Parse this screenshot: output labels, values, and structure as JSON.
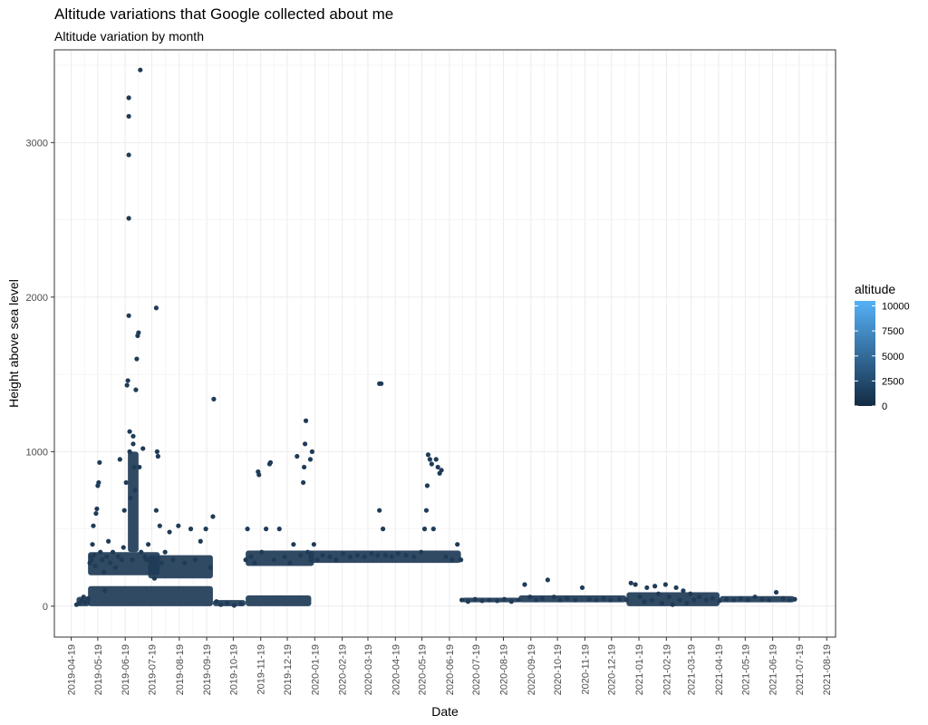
{
  "chart_data": {
    "type": "scatter",
    "title": "Altitude variations that Google collected about me",
    "subtitle": "Altitude variation by month",
    "xlabel": "Date",
    "ylabel": "Height above sea level",
    "xlim": [
      "2019-03-31",
      "2021-08-29"
    ],
    "ylim": [
      -200,
      3600
    ],
    "x_ticks": [
      "2019-04-19",
      "2019-05-19",
      "2019-06-19",
      "2019-07-19",
      "2019-08-19",
      "2019-09-19",
      "2019-10-19",
      "2019-11-19",
      "2019-12-19",
      "2020-01-19",
      "2020-02-19",
      "2020-03-19",
      "2020-04-19",
      "2020-05-19",
      "2020-06-19",
      "2020-07-19",
      "2020-08-19",
      "2020-09-19",
      "2020-10-19",
      "2020-11-19",
      "2020-12-19",
      "2021-01-19",
      "2021-02-19",
      "2021-03-19",
      "2021-04-19",
      "2021-05-19",
      "2021-06-19",
      "2021-07-19",
      "2021-08-19"
    ],
    "y_ticks": [
      0,
      1000,
      2000,
      3000
    ],
    "grid": true,
    "point_color": "#1f3b57",
    "legend": {
      "title": "altitude",
      "placement": "right",
      "type": "colorbar",
      "ticks": [
        0,
        2500,
        5000,
        7500,
        10000
      ],
      "range": [
        0,
        10500
      ],
      "color_low": "#132b43",
      "color_high": "#56b1f7"
    },
    "points": [
      [
        "2019-04-25",
        10
      ],
      [
        "2019-04-28",
        20
      ],
      [
        "2019-05-01",
        35
      ],
      [
        "2019-05-03",
        60
      ],
      [
        "2019-05-05",
        25
      ],
      [
        "2019-05-08",
        50
      ],
      [
        "2019-05-10",
        280
      ],
      [
        "2019-05-11",
        320
      ],
      [
        "2019-05-12",
        300
      ],
      [
        "2019-05-13",
        400
      ],
      [
        "2019-05-14",
        520
      ],
      [
        "2019-05-15",
        330
      ],
      [
        "2019-05-16",
        260
      ],
      [
        "2019-05-17",
        600
      ],
      [
        "2019-05-18",
        630
      ],
      [
        "2019-05-19",
        780
      ],
      [
        "2019-05-20",
        800
      ],
      [
        "2019-05-21",
        930
      ],
      [
        "2019-05-22",
        350
      ],
      [
        "2019-05-24",
        300
      ],
      [
        "2019-05-26",
        220
      ],
      [
        "2019-05-27",
        100
      ],
      [
        "2019-05-29",
        320
      ],
      [
        "2019-05-31",
        420
      ],
      [
        "2019-06-02",
        280
      ],
      [
        "2019-06-05",
        350
      ],
      [
        "2019-06-08",
        250
      ],
      [
        "2019-06-11",
        320
      ],
      [
        "2019-06-13",
        950
      ],
      [
        "2019-06-15",
        300
      ],
      [
        "2019-06-17",
        380
      ],
      [
        "2019-06-18",
        620
      ],
      [
        "2019-06-20",
        800
      ],
      [
        "2019-06-21",
        1430
      ],
      [
        "2019-06-22",
        1460
      ],
      [
        "2019-06-23",
        1880
      ],
      [
        "2019-06-23",
        2510
      ],
      [
        "2019-06-23",
        2920
      ],
      [
        "2019-06-23",
        3170
      ],
      [
        "2019-06-23",
        3290
      ],
      [
        "2019-06-24",
        1000
      ],
      [
        "2019-06-24",
        1130
      ],
      [
        "2019-06-25",
        700
      ],
      [
        "2019-06-27",
        300
      ],
      [
        "2019-06-28",
        1050
      ],
      [
        "2019-06-28",
        1100
      ],
      [
        "2019-06-29",
        900
      ],
      [
        "2019-06-30",
        750
      ],
      [
        "2019-07-01",
        1400
      ],
      [
        "2019-07-02",
        1600
      ],
      [
        "2019-07-03",
        1750
      ],
      [
        "2019-07-04",
        1770
      ],
      [
        "2019-07-05",
        900
      ],
      [
        "2019-07-06",
        3470
      ],
      [
        "2019-07-07",
        350
      ],
      [
        "2019-07-09",
        1020
      ],
      [
        "2019-07-11",
        320
      ],
      [
        "2019-07-13",
        300
      ],
      [
        "2019-07-15",
        400
      ],
      [
        "2019-07-17",
        250
      ],
      [
        "2019-07-20",
        300
      ],
      [
        "2019-07-22",
        180
      ],
      [
        "2019-07-24",
        620
      ],
      [
        "2019-07-24",
        1930
      ],
      [
        "2019-07-25",
        1000
      ],
      [
        "2019-07-26",
        970
      ],
      [
        "2019-07-28",
        520
      ],
      [
        "2019-07-30",
        280
      ],
      [
        "2019-08-03",
        350
      ],
      [
        "2019-08-08",
        480
      ],
      [
        "2019-08-12",
        300
      ],
      [
        "2019-08-18",
        520
      ],
      [
        "2019-08-25",
        280
      ],
      [
        "2019-09-01",
        500
      ],
      [
        "2019-09-06",
        300
      ],
      [
        "2019-09-12",
        420
      ],
      [
        "2019-09-18",
        500
      ],
      [
        "2019-09-23",
        250
      ],
      [
        "2019-09-26",
        580
      ],
      [
        "2019-09-27",
        1340
      ],
      [
        "2019-09-30",
        30
      ],
      [
        "2019-10-05",
        10
      ],
      [
        "2019-10-12",
        20
      ],
      [
        "2019-10-20",
        5
      ],
      [
        "2019-10-28",
        15
      ],
      [
        "2019-11-02",
        300
      ],
      [
        "2019-11-04",
        500
      ],
      [
        "2019-11-08",
        320
      ],
      [
        "2019-11-12",
        280
      ],
      [
        "2019-11-16",
        870
      ],
      [
        "2019-11-17",
        850
      ],
      [
        "2019-11-20",
        350
      ],
      [
        "2019-11-25",
        500
      ],
      [
        "2019-11-29",
        920
      ],
      [
        "2019-11-30",
        930
      ],
      [
        "2019-12-04",
        300
      ],
      [
        "2019-12-10",
        500
      ],
      [
        "2019-12-16",
        320
      ],
      [
        "2019-12-22",
        280
      ],
      [
        "2019-12-26",
        400
      ],
      [
        "2019-12-30",
        970
      ],
      [
        "2020-01-03",
        330
      ],
      [
        "2020-01-06",
        800
      ],
      [
        "2020-01-07",
        900
      ],
      [
        "2020-01-08",
        1050
      ],
      [
        "2020-01-09",
        1200
      ],
      [
        "2020-01-11",
        350
      ],
      [
        "2020-01-14",
        950
      ],
      [
        "2020-01-16",
        1000
      ],
      [
        "2020-01-18",
        400
      ],
      [
        "2020-01-22",
        300
      ],
      [
        "2020-01-28",
        330
      ],
      [
        "2020-02-05",
        320
      ],
      [
        "2020-02-12",
        300
      ],
      [
        "2020-02-20",
        340
      ],
      [
        "2020-02-28",
        320
      ],
      [
        "2020-03-07",
        330
      ],
      [
        "2020-03-15",
        320
      ],
      [
        "2020-03-23",
        340
      ],
      [
        "2020-03-30",
        330
      ],
      [
        "2020-04-01",
        620
      ],
      [
        "2020-04-01",
        1440
      ],
      [
        "2020-04-03",
        1440
      ],
      [
        "2020-04-05",
        500
      ],
      [
        "2020-04-08",
        330
      ],
      [
        "2020-04-15",
        320
      ],
      [
        "2020-04-22",
        340
      ],
      [
        "2020-05-01",
        330
      ],
      [
        "2020-05-10",
        320
      ],
      [
        "2020-05-18",
        350
      ],
      [
        "2020-05-22",
        500
      ],
      [
        "2020-05-24",
        620
      ],
      [
        "2020-05-25",
        780
      ],
      [
        "2020-05-26",
        980
      ],
      [
        "2020-05-28",
        950
      ],
      [
        "2020-05-30",
        920
      ],
      [
        "2020-06-01",
        500
      ],
      [
        "2020-06-04",
        950
      ],
      [
        "2020-06-06",
        900
      ],
      [
        "2020-06-08",
        860
      ],
      [
        "2020-06-10",
        880
      ],
      [
        "2020-06-15",
        320
      ],
      [
        "2020-06-22",
        300
      ],
      [
        "2020-06-28",
        400
      ],
      [
        "2020-07-02",
        300
      ],
      [
        "2020-07-03",
        40
      ],
      [
        "2020-07-10",
        30
      ],
      [
        "2020-07-18",
        45
      ],
      [
        "2020-07-26",
        35
      ],
      [
        "2020-08-03",
        40
      ],
      [
        "2020-08-12",
        35
      ],
      [
        "2020-08-20",
        45
      ],
      [
        "2020-08-28",
        30
      ],
      [
        "2020-09-05",
        40
      ],
      [
        "2020-09-12",
        140
      ],
      [
        "2020-09-18",
        60
      ],
      [
        "2020-09-25",
        40
      ],
      [
        "2020-10-02",
        50
      ],
      [
        "2020-10-08",
        170
      ],
      [
        "2020-10-15",
        60
      ],
      [
        "2020-10-22",
        40
      ],
      [
        "2020-10-30",
        50
      ],
      [
        "2020-11-08",
        40
      ],
      [
        "2020-11-16",
        120
      ],
      [
        "2020-11-24",
        45
      ],
      [
        "2020-12-02",
        40
      ],
      [
        "2020-12-10",
        50
      ],
      [
        "2020-12-18",
        40
      ],
      [
        "2020-12-28",
        45
      ],
      [
        "2021-01-05",
        40
      ],
      [
        "2021-01-10",
        150
      ],
      [
        "2021-01-15",
        140
      ],
      [
        "2021-01-20",
        60
      ],
      [
        "2021-01-25",
        30
      ],
      [
        "2021-01-28",
        120
      ],
      [
        "2021-02-03",
        40
      ],
      [
        "2021-02-06",
        130
      ],
      [
        "2021-02-10",
        80
      ],
      [
        "2021-02-14",
        20
      ],
      [
        "2021-02-18",
        140
      ],
      [
        "2021-02-22",
        60
      ],
      [
        "2021-02-26",
        10
      ],
      [
        "2021-03-02",
        120
      ],
      [
        "2021-03-06",
        40
      ],
      [
        "2021-03-10",
        100
      ],
      [
        "2021-03-14",
        20
      ],
      [
        "2021-03-18",
        80
      ],
      [
        "2021-03-22",
        40
      ],
      [
        "2021-03-28",
        60
      ],
      [
        "2021-04-05",
        40
      ],
      [
        "2021-04-12",
        50
      ],
      [
        "2021-04-20",
        35
      ],
      [
        "2021-04-28",
        45
      ],
      [
        "2021-05-06",
        40
      ],
      [
        "2021-05-14",
        50
      ],
      [
        "2021-05-22",
        40
      ],
      [
        "2021-05-30",
        60
      ],
      [
        "2021-06-07",
        45
      ],
      [
        "2021-06-15",
        40
      ],
      [
        "2021-06-23",
        90
      ],
      [
        "2021-07-01",
        50
      ],
      [
        "2021-07-08",
        40
      ],
      [
        "2021-07-14",
        45
      ]
    ],
    "dense_bands": [
      {
        "x_start": "2019-04-25",
        "x_end": "2019-05-10",
        "y_min": 0,
        "y_max": 60
      },
      {
        "x_start": "2019-05-08",
        "x_end": "2019-07-28",
        "y_min": 200,
        "y_max": 350
      },
      {
        "x_start": "2019-05-08",
        "x_end": "2019-09-26",
        "y_min": 0,
        "y_max": 130
      },
      {
        "x_start": "2019-06-22",
        "x_end": "2019-07-04",
        "y_min": 350,
        "y_max": 1000
      },
      {
        "x_start": "2019-07-15",
        "x_end": "2019-09-26",
        "y_min": 180,
        "y_max": 330
      },
      {
        "x_start": "2019-09-26",
        "x_end": "2019-11-02",
        "y_min": 0,
        "y_max": 40
      },
      {
        "x_start": "2019-11-02",
        "x_end": "2020-01-18",
        "y_min": 260,
        "y_max": 360
      },
      {
        "x_start": "2019-11-02",
        "x_end": "2020-01-15",
        "y_min": 0,
        "y_max": 70
      },
      {
        "x_start": "2020-01-12",
        "x_end": "2020-07-02",
        "y_min": 280,
        "y_max": 360
      },
      {
        "x_start": "2020-07-03",
        "x_end": "2020-09-05",
        "y_min": 25,
        "y_max": 55
      },
      {
        "x_start": "2020-09-05",
        "x_end": "2021-01-05",
        "y_min": 25,
        "y_max": 70
      },
      {
        "x_start": "2021-01-05",
        "x_end": "2021-04-20",
        "y_min": 0,
        "y_max": 90
      },
      {
        "x_start": "2021-04-20",
        "x_end": "2021-07-14",
        "y_min": 25,
        "y_max": 65
      }
    ]
  }
}
